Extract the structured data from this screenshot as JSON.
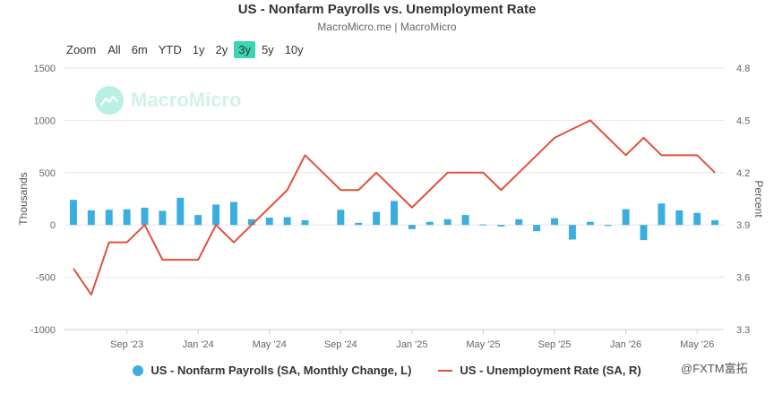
{
  "header": {
    "title": "US - Nonfarm Payrolls vs. Unemployment Rate",
    "subtitle": "MacroMicro.me | MacroMicro"
  },
  "zoom": {
    "label": "Zoom",
    "options": [
      "All",
      "6m",
      "YTD",
      "1y",
      "2y",
      "3y",
      "5y",
      "10y"
    ],
    "selected": "3y"
  },
  "watermark": {
    "text": "MacroMicro"
  },
  "corner_watermark": {
    "text": "@FXTM富拓"
  },
  "colors": {
    "payrolls": "#3aafdf",
    "unemployment": "#e0523a",
    "zoom_active": "#3ad6b3"
  },
  "chart_data": {
    "type": "bar+line",
    "title": "US - Nonfarm Payrolls vs. Unemployment Rate",
    "subtitle": "MacroMicro.me | MacroMicro",
    "xlabel": "",
    "ylabel_left": "Thousands",
    "ylabel_right": "Percent",
    "ylim_left": [
      -1000,
      1500
    ],
    "ylim_right": [
      3.3,
      4.8
    ],
    "yticks_left": [
      "1500",
      "1000",
      "500",
      "0",
      "-500",
      "-1000"
    ],
    "yticks_right": [
      "4.8",
      "4.5",
      "4.2",
      "3.9",
      "3.6",
      "3.3"
    ],
    "x_tick_labels": [
      "Sep '23",
      "Jan '24",
      "May '24",
      "Sep '24",
      "Jan '25",
      "May '25",
      "Sep '25",
      "Jan '26",
      "May '26"
    ],
    "grid": true,
    "legend_position": "bottom-center",
    "categories": [
      "2023-06",
      "2023-07",
      "2023-08",
      "2023-09",
      "2023-10",
      "2023-11",
      "2023-12",
      "2024-01",
      "2024-02",
      "2024-03",
      "2024-04",
      "2024-05",
      "2024-06",
      "2024-07",
      "2024-08",
      "2024-09",
      "2024-10",
      "2024-11",
      "2024-12",
      "2025-01",
      "2025-02",
      "2025-03",
      "2025-04",
      "2025-05",
      "2025-06",
      "2025-07",
      "2025-08",
      "2025-09",
      "2025-10",
      "2025-11",
      "2025-12",
      "2026-01",
      "2026-02",
      "2026-03",
      "2026-04",
      "2026-05",
      "2026-06"
    ],
    "series": [
      {
        "name": "US - Nonfarm Payrolls (SA, Monthly Change, L)",
        "type": "bar",
        "axis": "left",
        "values": [
          240,
          140,
          145,
          150,
          165,
          135,
          260,
          95,
          195,
          220,
          55,
          70,
          75,
          45,
          null,
          145,
          20,
          125,
          230,
          -40,
          30,
          55,
          95,
          5,
          -15,
          55,
          -60,
          65,
          -140,
          30,
          -10,
          150,
          -145,
          205,
          140,
          115,
          45
        ]
      },
      {
        "name": "US - Unemployment Rate (SA, R)",
        "type": "line",
        "axis": "right",
        "values": [
          3.65,
          3.5,
          3.8,
          3.8,
          3.9,
          3.7,
          3.7,
          3.7,
          3.9,
          3.8,
          3.9,
          4.0,
          4.1,
          4.3,
          4.2,
          4.1,
          4.1,
          4.2,
          4.1,
          4.0,
          4.1,
          4.2,
          4.2,
          4.2,
          4.1,
          4.2,
          4.3,
          4.4,
          4.45,
          4.5,
          4.4,
          4.3,
          4.4,
          4.3,
          4.3,
          4.3,
          4.2
        ]
      }
    ]
  },
  "legend": {
    "payrolls": "US - Nonfarm Payrolls (SA, Monthly Change, L)",
    "unemployment": "US - Unemployment Rate (SA, R)"
  }
}
